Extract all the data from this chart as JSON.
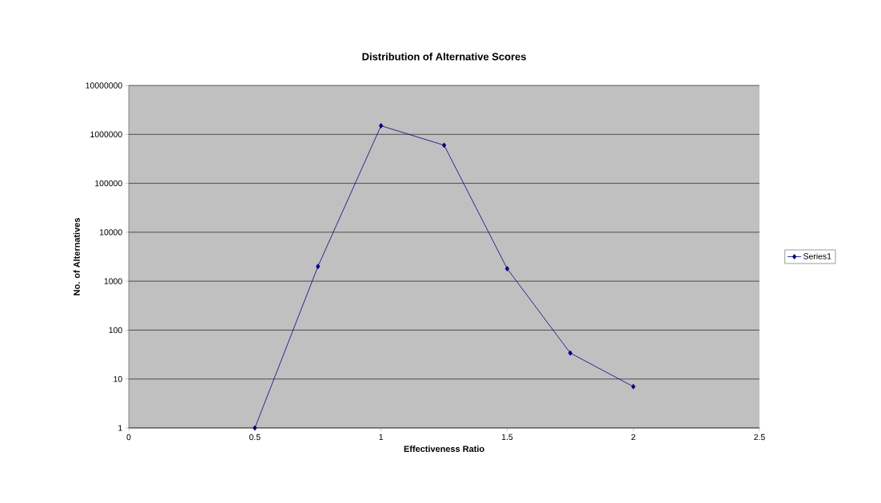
{
  "chart_data": {
    "type": "line",
    "title": "Distribution of Alternative Scores",
    "xlabel": "Effectiveness Ratio",
    "ylabel": "No. of Alternatives",
    "x": [
      0.5,
      0.75,
      1,
      1.25,
      1.5,
      1.75,
      2
    ],
    "series": [
      {
        "name": "Series1",
        "color": "#000080",
        "values": [
          1,
          2000,
          1500000,
          600000,
          1800,
          34,
          7
        ]
      }
    ],
    "xlim": [
      0,
      2.5
    ],
    "xticks": [
      0,
      0.5,
      1,
      1.5,
      2,
      2.5
    ],
    "ylim": [
      1,
      10000000
    ],
    "yticks": [
      1,
      10,
      100,
      1000,
      10000,
      100000,
      1000000,
      10000000
    ],
    "log": "y",
    "grid": "y",
    "legend": "right",
    "marker": "diamond",
    "line_style": "solid"
  }
}
